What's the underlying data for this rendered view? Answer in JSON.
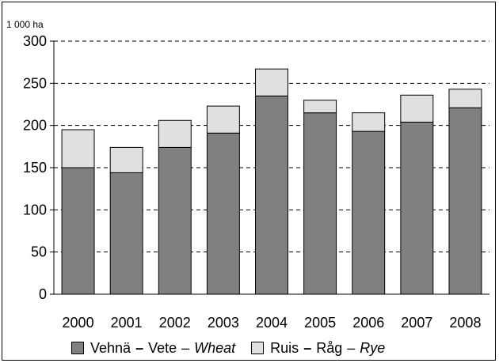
{
  "chart_data": {
    "type": "bar",
    "stacked": true,
    "unit_label": "1 000 ha",
    "categories": [
      "2000",
      "2001",
      "2002",
      "2003",
      "2004",
      "2005",
      "2006",
      "2007",
      "2008"
    ],
    "series": [
      {
        "name": "Vehnä – Vete – Wheat",
        "color": "#808080",
        "values": [
          150,
          144,
          174,
          191,
          235,
          215,
          193,
          204,
          221
        ]
      },
      {
        "name": "Ruis – Råg – Rye",
        "color": "#e0e0e0",
        "values": [
          45,
          30,
          32,
          32,
          32,
          15,
          22,
          32,
          22
        ]
      }
    ],
    "ylim": [
      0,
      300
    ],
    "yticks": [
      "0",
      "50",
      "100",
      "150",
      "200",
      "250",
      "300"
    ],
    "grid": "dashed-horizontal",
    "legend_position": "bottom"
  },
  "legend": {
    "wheat": {
      "fi": "Vehnä",
      "sep1": "–",
      "sv": "Vete",
      "sep2": "–",
      "en": "Wheat"
    },
    "rye": {
      "fi": "Ruis",
      "sep1": "–",
      "sv": "Råg",
      "sep2": "–",
      "en": "Rye"
    }
  }
}
